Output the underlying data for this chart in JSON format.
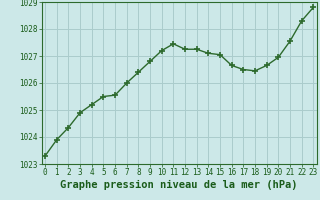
{
  "x": [
    0,
    1,
    2,
    3,
    4,
    5,
    6,
    7,
    8,
    9,
    10,
    11,
    12,
    13,
    14,
    15,
    16,
    17,
    18,
    19,
    20,
    21,
    22,
    23
  ],
  "y": [
    1023.3,
    1023.9,
    1024.35,
    1024.9,
    1025.2,
    1025.5,
    1025.55,
    1026.0,
    1026.4,
    1026.8,
    1027.2,
    1027.45,
    1027.25,
    1027.25,
    1027.1,
    1027.05,
    1026.65,
    1026.5,
    1026.45,
    1026.65,
    1026.95,
    1027.55,
    1028.3,
    1028.8
  ],
  "line_color": "#2d6a2d",
  "marker": "+",
  "marker_size": 4,
  "marker_lw": 1.2,
  "line_width": 1.0,
  "bg_color": "#cce8e8",
  "grid_color": "#aacccc",
  "xlabel": "Graphe pression niveau de la mer (hPa)",
  "xlabel_fontsize": 7.5,
  "xlabel_color": "#1a5c1a",
  "ylim": [
    1023,
    1029
  ],
  "yticks": [
    1023,
    1024,
    1025,
    1026,
    1027,
    1028,
    1029
  ],
  "xticks": [
    0,
    1,
    2,
    3,
    4,
    5,
    6,
    7,
    8,
    9,
    10,
    11,
    12,
    13,
    14,
    15,
    16,
    17,
    18,
    19,
    20,
    21,
    22,
    23
  ],
  "tick_fontsize": 5.5,
  "tick_color": "#1a5c1a",
  "spine_color": "#2d6a2d"
}
